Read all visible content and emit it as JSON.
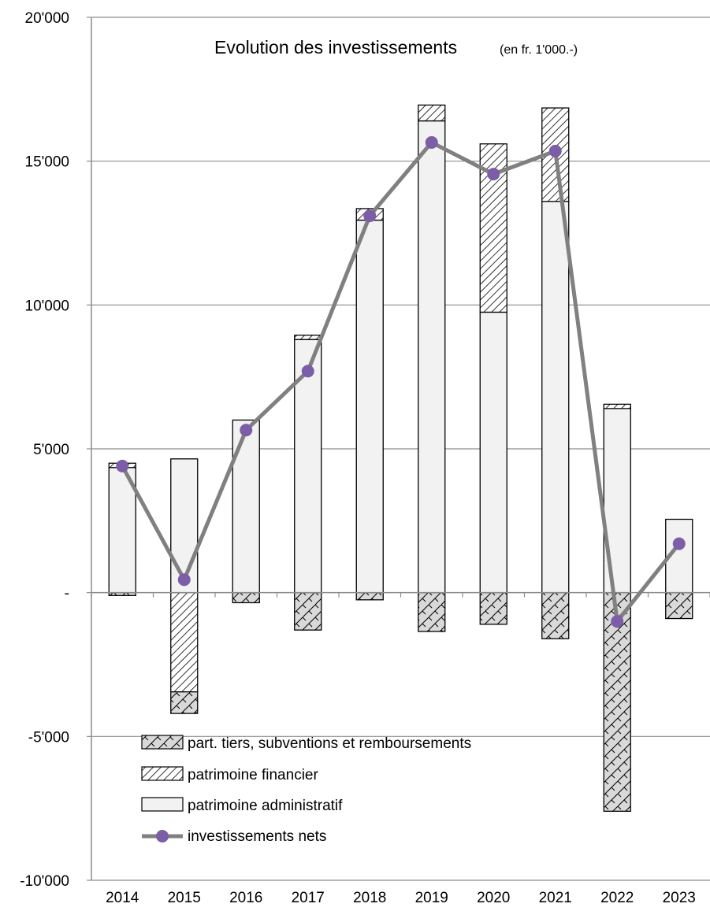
{
  "chart_data": {
    "type": "bar",
    "title": "Evolution des investissements",
    "subtitle": "(en fr. 1'000.-)",
    "categories": [
      "2014",
      "2015",
      "2016",
      "2017",
      "2018",
      "2019",
      "2020",
      "2021",
      "2022",
      "2023"
    ],
    "stacked": true,
    "ylim": [
      -10000,
      20000
    ],
    "yticks": [
      -10000,
      -5000,
      0,
      5000,
      10000,
      15000,
      20000
    ],
    "ytick_labels": [
      "-10'000",
      "-5'000",
      "-",
      "5'000",
      "10'000",
      "15'000",
      "20'000"
    ],
    "grid": true,
    "legend_position": "bottom-left",
    "series": [
      {
        "name": "part. tiers, subventions et remboursements",
        "kind": "bar",
        "pattern": "crosshatch",
        "values": [
          -100,
          -750,
          -350,
          -1300,
          -250,
          -1350,
          -1100,
          -1600,
          -7600,
          -900
        ]
      },
      {
        "name": "patrimoine financier",
        "kind": "bar",
        "pattern": "diagonal",
        "values": [
          150,
          -3450,
          0,
          150,
          400,
          550,
          5850,
          3250,
          150,
          0
        ]
      },
      {
        "name": "patrimoine administratif",
        "kind": "bar",
        "pattern": "solid",
        "values": [
          4350,
          4650,
          6000,
          8800,
          12950,
          16400,
          9750,
          13600,
          6400,
          2550
        ]
      },
      {
        "name": "investissements nets",
        "kind": "line",
        "color": "#808080",
        "marker_color": "#7b5ea7",
        "values": [
          4400,
          450,
          5650,
          7700,
          13100,
          15650,
          14550,
          15350,
          -1000,
          1700
        ]
      }
    ]
  }
}
